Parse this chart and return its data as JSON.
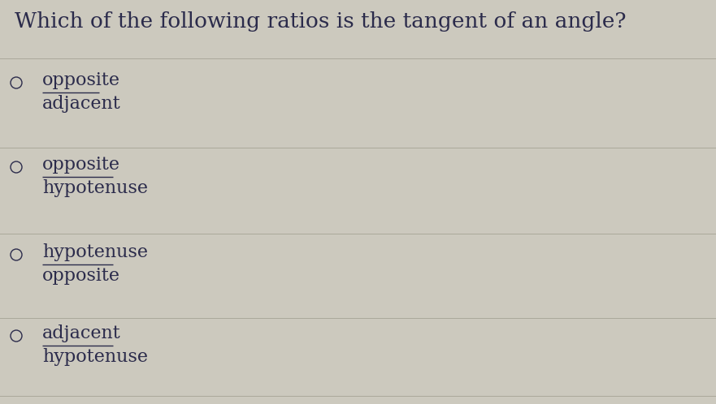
{
  "background_color": "#ccc9be",
  "text_color": "#2b2b4b",
  "question": "Which of the following ratios is the tangent of an angle?",
  "question_fontsize": 19,
  "options": [
    {
      "numerator": "opposite",
      "denominator": "adjacent"
    },
    {
      "numerator": "opposite",
      "denominator": "hypotenuse"
    },
    {
      "numerator": "hypotenuse",
      "denominator": "opposite"
    },
    {
      "numerator": "adjacent",
      "denominator": "hypotenuse"
    }
  ],
  "option_fontsize": 16,
  "separator_color": "#aaa89a",
  "separator_linewidth": 0.7,
  "fig_width": 8.81,
  "fig_height": 4.98,
  "dpi": 100
}
